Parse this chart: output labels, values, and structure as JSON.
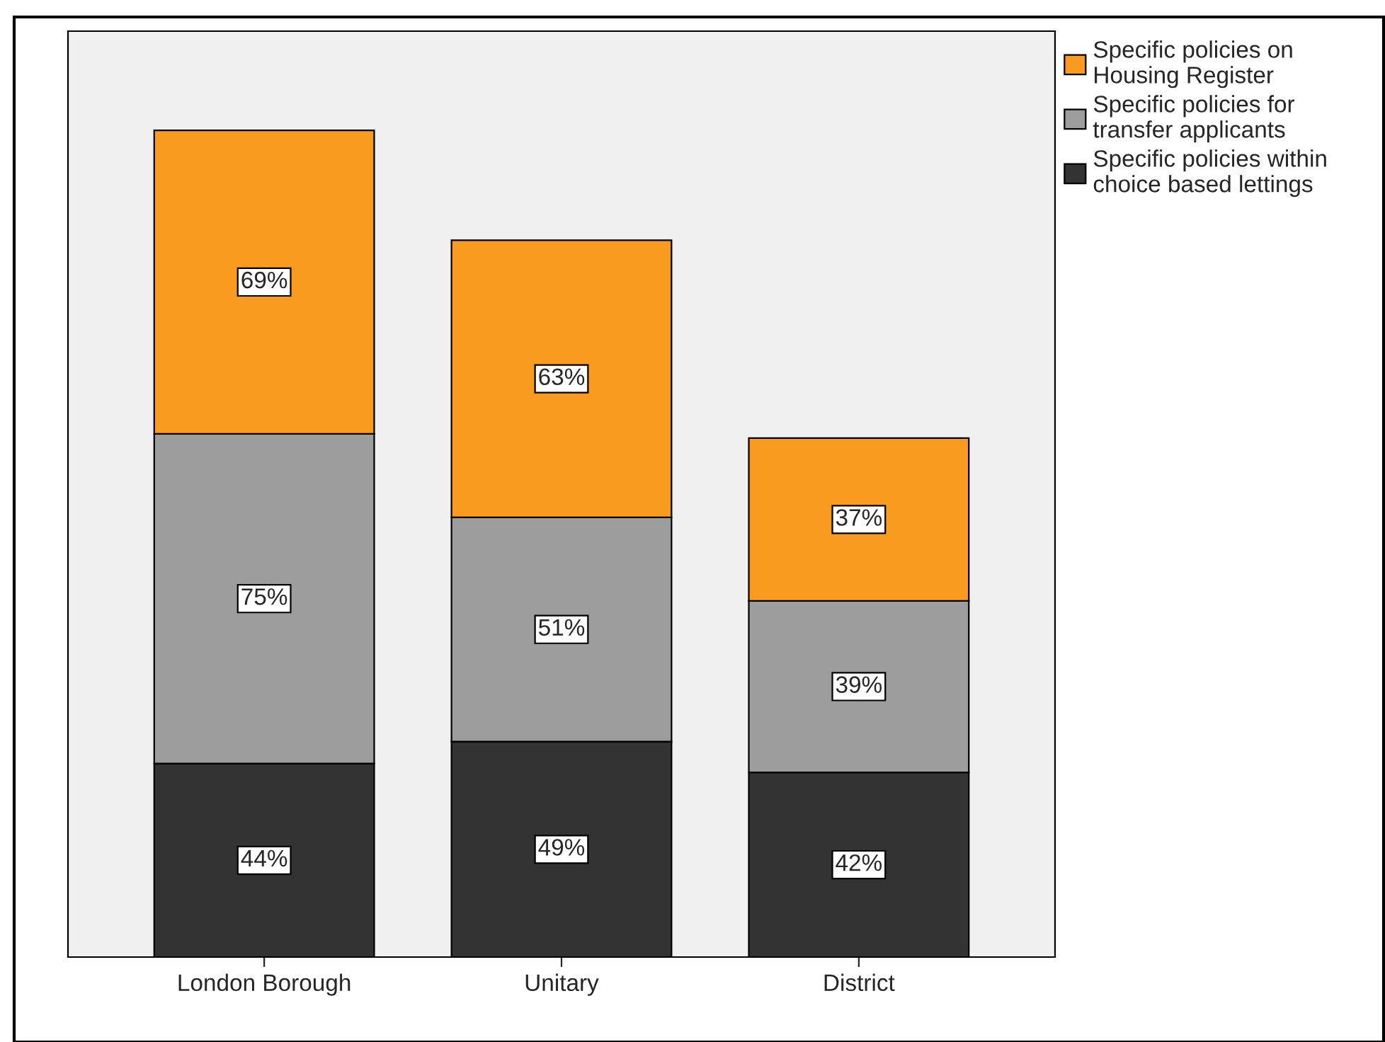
{
  "chart_data": {
    "type": "bar",
    "stacked": true,
    "legend": "top right",
    "grid": false,
    "tick_labels": "x",
    "categories": [
      "London Borough",
      "Unitary",
      "District"
    ],
    "series": [
      {
        "name": "Specific policies within\nchoice based lettings",
        "color": "#333333",
        "values": [
          44,
          49,
          42
        ],
        "value_labels": [
          "44%",
          "49%",
          "42%"
        ]
      },
      {
        "name": "Specific policies for\ntransfer applicants",
        "color": "#9d9d9d",
        "values": [
          75,
          51,
          39
        ],
        "value_labels": [
          "75%",
          "51%",
          "39%"
        ]
      },
      {
        "name": "Specific policies on\nHousing Register",
        "color": "#f99b1f",
        "values": [
          69,
          63,
          37
        ],
        "value_labels": [
          "69%",
          "63%",
          "37%"
        ]
      }
    ]
  }
}
